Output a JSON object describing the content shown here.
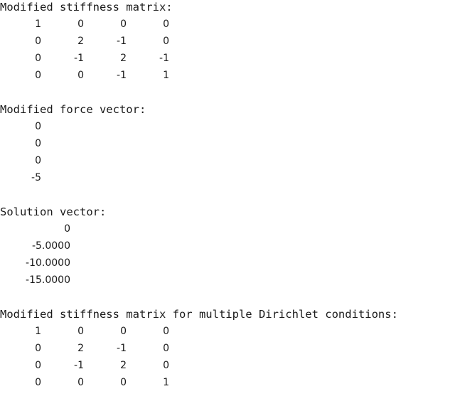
{
  "output": {
    "stiffness": {
      "title": "Modified stiffness matrix:",
      "rows": [
        [
          "1",
          "0",
          "0",
          "0"
        ],
        [
          "0",
          "2",
          "-1",
          "0"
        ],
        [
          "0",
          "-1",
          "2",
          "-1"
        ],
        [
          "0",
          "0",
          "-1",
          "1"
        ]
      ]
    },
    "force": {
      "title": "Modified force vector:",
      "values": [
        "0",
        "0",
        "0",
        "-5"
      ]
    },
    "solution": {
      "title": "Solution vector:",
      "values": [
        "0",
        "-5.0000",
        "-10.0000",
        "-15.0000"
      ]
    },
    "stiffness_multi": {
      "title": "Modified stiffness matrix for multiple Dirichlet conditions:",
      "rows": [
        [
          "1",
          "0",
          "0",
          "0"
        ],
        [
          "0",
          "2",
          "-1",
          "0"
        ],
        [
          "0",
          "-1",
          "2",
          "0"
        ],
        [
          "0",
          "0",
          "0",
          "1"
        ]
      ]
    }
  }
}
